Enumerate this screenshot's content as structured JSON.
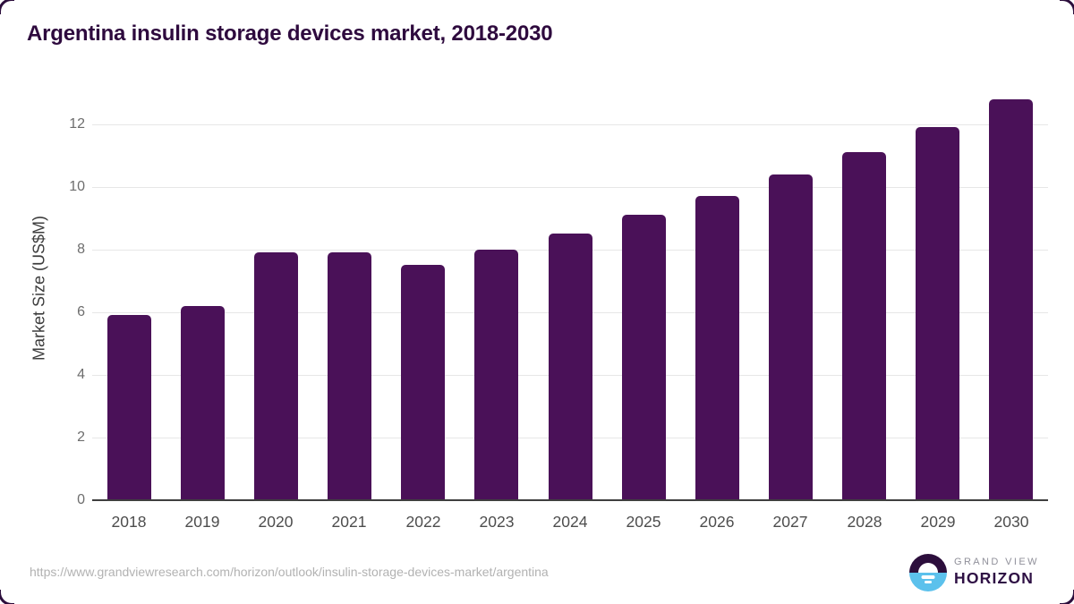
{
  "title": "Argentina insulin storage devices market, 2018-2030",
  "chart_data": {
    "type": "bar",
    "title": "Argentina insulin storage devices market, 2018-2030",
    "categories": [
      "2018",
      "2019",
      "2020",
      "2021",
      "2022",
      "2023",
      "2024",
      "2025",
      "2026",
      "2027",
      "2028",
      "2029",
      "2030"
    ],
    "values": [
      5.9,
      6.2,
      7.9,
      7.9,
      7.5,
      8.0,
      8.5,
      9.1,
      9.7,
      10.4,
      11.1,
      11.9,
      12.8
    ],
    "xlabel": "",
    "ylabel": "Market Size (US$M)",
    "ylim": [
      0,
      13
    ],
    "yticks": [
      0,
      2,
      4,
      6,
      8,
      10,
      12
    ],
    "grid": "horizontal",
    "legend": false,
    "bar_color": "#4a1158"
  },
  "colors": {
    "title": "#2e0a3e",
    "bar": "#4a1158",
    "gridline": "#e7e7e7",
    "axis_line": "#3f3f3f",
    "tick_label": "#6d6d6d",
    "x_label": "#4d4d4d",
    "url_text": "#b2b2b2",
    "logo_purple": "#2c0e3c",
    "logo_blue": "#5cc1ec"
  },
  "footer": {
    "source_url": "https://www.grandviewresearch.com/horizon/outlook/insulin-storage-devices-market/argentina",
    "logo": {
      "line1": "GRAND VIEW",
      "line2": "HORIZON"
    }
  }
}
